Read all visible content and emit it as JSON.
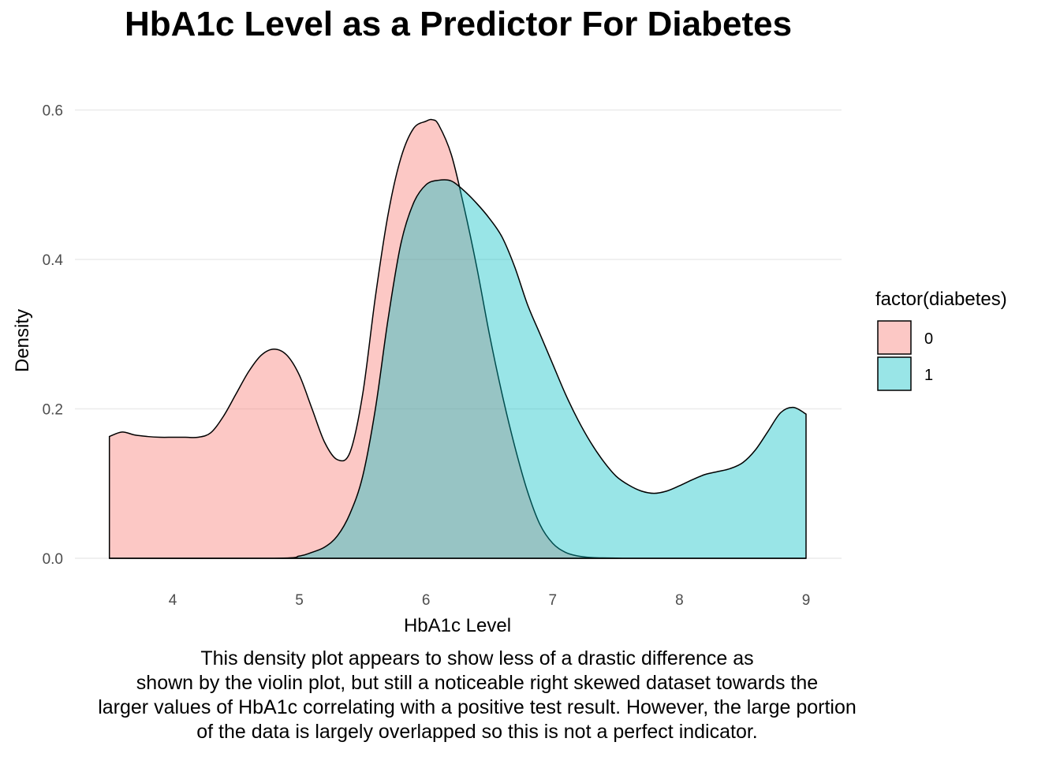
{
  "chart_data": {
    "type": "area",
    "title": "HbA1c Level as a Predictor For Diabetes",
    "xlabel": "HbA1c Level",
    "ylabel": "Density",
    "xlim": [
      3.5,
      9.0
    ],
    "ylim": [
      0,
      0.6
    ],
    "xticks": [
      4,
      5,
      6,
      7,
      8,
      9
    ],
    "yticks": [
      0.0,
      0.2,
      0.4,
      0.6
    ],
    "ytick_labels": [
      "0.0",
      "0.2",
      "0.4",
      "0.6"
    ],
    "grid": true,
    "legend": {
      "title": "factor(diabetes)",
      "placement": "right"
    },
    "series": [
      {
        "name": "0",
        "color": "#F8766D",
        "x": [
          3.5,
          3.6,
          3.7,
          3.8,
          3.9,
          4.0,
          4.1,
          4.2,
          4.3,
          4.4,
          4.5,
          4.6,
          4.7,
          4.8,
          4.9,
          5.0,
          5.1,
          5.2,
          5.3,
          5.4,
          5.5,
          5.6,
          5.7,
          5.8,
          5.9,
          6.0,
          6.05,
          6.1,
          6.2,
          6.3,
          6.4,
          6.5,
          6.6,
          6.7,
          6.8,
          6.9,
          7.0,
          7.1,
          7.2,
          7.3,
          7.4,
          7.5,
          7.6,
          8.0,
          9.0
        ],
        "y": [
          0.163,
          0.169,
          0.165,
          0.163,
          0.162,
          0.162,
          0.162,
          0.162,
          0.168,
          0.19,
          0.22,
          0.25,
          0.272,
          0.28,
          0.272,
          0.245,
          0.2,
          0.155,
          0.132,
          0.142,
          0.22,
          0.35,
          0.46,
          0.535,
          0.575,
          0.585,
          0.587,
          0.58,
          0.54,
          0.47,
          0.39,
          0.3,
          0.22,
          0.15,
          0.09,
          0.045,
          0.02,
          0.008,
          0.003,
          0.001,
          0.0005,
          0.0002,
          0.0,
          0.0,
          0.0
        ]
      },
      {
        "name": "1",
        "color": "#00BFC4",
        "x": [
          3.5,
          4.8,
          5.0,
          5.1,
          5.2,
          5.3,
          5.4,
          5.5,
          5.6,
          5.7,
          5.8,
          5.9,
          6.0,
          6.1,
          6.2,
          6.3,
          6.4,
          6.5,
          6.6,
          6.7,
          6.8,
          6.9,
          7.0,
          7.1,
          7.2,
          7.3,
          7.4,
          7.5,
          7.6,
          7.7,
          7.8,
          7.9,
          8.0,
          8.1,
          8.2,
          8.3,
          8.4,
          8.5,
          8.6,
          8.7,
          8.8,
          8.9,
          9.0
        ],
        "y": [
          0.0,
          0.0,
          0.003,
          0.008,
          0.015,
          0.03,
          0.06,
          0.11,
          0.2,
          0.32,
          0.42,
          0.475,
          0.5,
          0.506,
          0.505,
          0.492,
          0.475,
          0.455,
          0.43,
          0.39,
          0.34,
          0.3,
          0.26,
          0.22,
          0.185,
          0.155,
          0.13,
          0.11,
          0.098,
          0.09,
          0.087,
          0.09,
          0.097,
          0.105,
          0.112,
          0.116,
          0.12,
          0.128,
          0.145,
          0.17,
          0.195,
          0.202,
          0.193
        ]
      }
    ]
  },
  "caption_lines": [
    "This density plot appears to show less of a drastic difference as",
    "shown by the violin plot, but still a noticeable right skewed dataset towards the",
    "larger values of HbA1c correlating with a positive test result. However, the large portion",
    "of the data is largely overlapped so this is not a perfect indicator."
  ]
}
